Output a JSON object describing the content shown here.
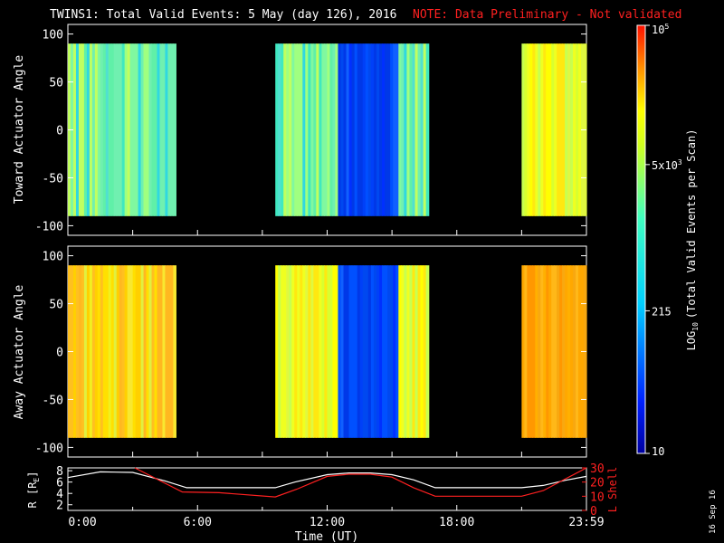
{
  "chart_data": [
    {
      "type": "heatmap",
      "title_main": "TWINS1: Total Valid Events:  5 May (day 126), 2016",
      "title_note": "NOTE: Data Preliminary - Not validated",
      "ylabel": "Toward Actuator Angle",
      "ylim": [
        -110,
        110
      ],
      "yticks": [
        "100",
        "50",
        "0",
        "-50",
        "-100"
      ],
      "data_angle_range": [
        -90,
        90
      ],
      "segments": [
        {
          "start_hour": 0.0,
          "end_hour": 5.0,
          "level": "cyan-yellow"
        },
        {
          "start_hour": 9.6,
          "end_hour": 12.5,
          "level": "cyan-yellow"
        },
        {
          "start_hour": 12.5,
          "end_hour": 15.3,
          "level": "blue"
        },
        {
          "start_hour": 15.3,
          "end_hour": 16.7,
          "level": "cyan-yellow"
        },
        {
          "start_hour": 21.0,
          "end_hour": 24.0,
          "level": "yellow"
        }
      ]
    },
    {
      "type": "heatmap",
      "ylabel": "Away Actuator Angle",
      "ylim": [
        -110,
        110
      ],
      "yticks": [
        "100",
        "50",
        "0",
        "-50",
        "-100"
      ],
      "data_angle_range": [
        -90,
        90
      ],
      "segments": [
        {
          "start_hour": 0.0,
          "end_hour": 5.0,
          "level": "yellow-orange"
        },
        {
          "start_hour": 9.6,
          "end_hour": 12.5,
          "level": "yellow"
        },
        {
          "start_hour": 12.5,
          "end_hour": 15.3,
          "level": "blue"
        },
        {
          "start_hour": 15.3,
          "end_hour": 16.7,
          "level": "yellow"
        },
        {
          "start_hour": 21.0,
          "end_hour": 24.0,
          "level": "orange"
        }
      ]
    },
    {
      "type": "line",
      "ylabel_left": "R [R",
      "ylabel_left_sub": "E",
      "ylabel_left_close": "]",
      "ylabel_right": "L Shell",
      "ylim_left": [
        1,
        8.5
      ],
      "ylim_right": [
        0,
        30
      ],
      "yticks_left": [
        "8",
        "6",
        "4",
        "2"
      ],
      "yticks_right": [
        "30",
        "20",
        "10",
        "0"
      ],
      "xlabel": "Time (UT)",
      "xticks": [
        "0:00",
        "6:00",
        "12:00",
        "18:00",
        "23:59"
      ],
      "series": [
        {
          "color": "#ffffff",
          "x": [
            0,
            1.5,
            3,
            4.5,
            5.5,
            7,
            8.5,
            9.6,
            10.5,
            12,
            13,
            14,
            15,
            16,
            17,
            18.5,
            20,
            21,
            22,
            23,
            24
          ],
          "y": [
            6.8,
            7.8,
            7.7,
            6.2,
            5.0,
            5.0,
            5.0,
            5.0,
            6.0,
            7.3,
            7.6,
            7.6,
            7.3,
            6.4,
            5.0,
            5.0,
            5.0,
            5.0,
            5.4,
            6.3,
            7.0
          ]
        },
        {
          "color": "#ff2020",
          "x": [
            3.1,
            5.3,
            7,
            9.6,
            10.6,
            12,
            13,
            14,
            15,
            16,
            17,
            19,
            21,
            22,
            23,
            24
          ],
          "y": [
            30,
            13,
            12.5,
            9.5,
            15,
            24,
            25.5,
            25.5,
            23.5,
            16,
            10,
            10,
            10,
            14,
            22,
            30
          ]
        }
      ]
    }
  ],
  "colorbar": {
    "label": "LOG  (Total Valid Events per Scan)",
    "label_main": "LOG",
    "label_sub": "10",
    "label_rest": "(Total Valid Events per Scan)",
    "ticks": [
      "10",
      "215",
      "5x10",
      "10"
    ],
    "tick_values": [
      10,
      215,
      5000,
      100000
    ],
    "tick_exps": [
      "",
      "",
      "3",
      "5"
    ],
    "range": [
      10,
      100000
    ],
    "scale": "log"
  },
  "timestamp": "16 Sep 16"
}
